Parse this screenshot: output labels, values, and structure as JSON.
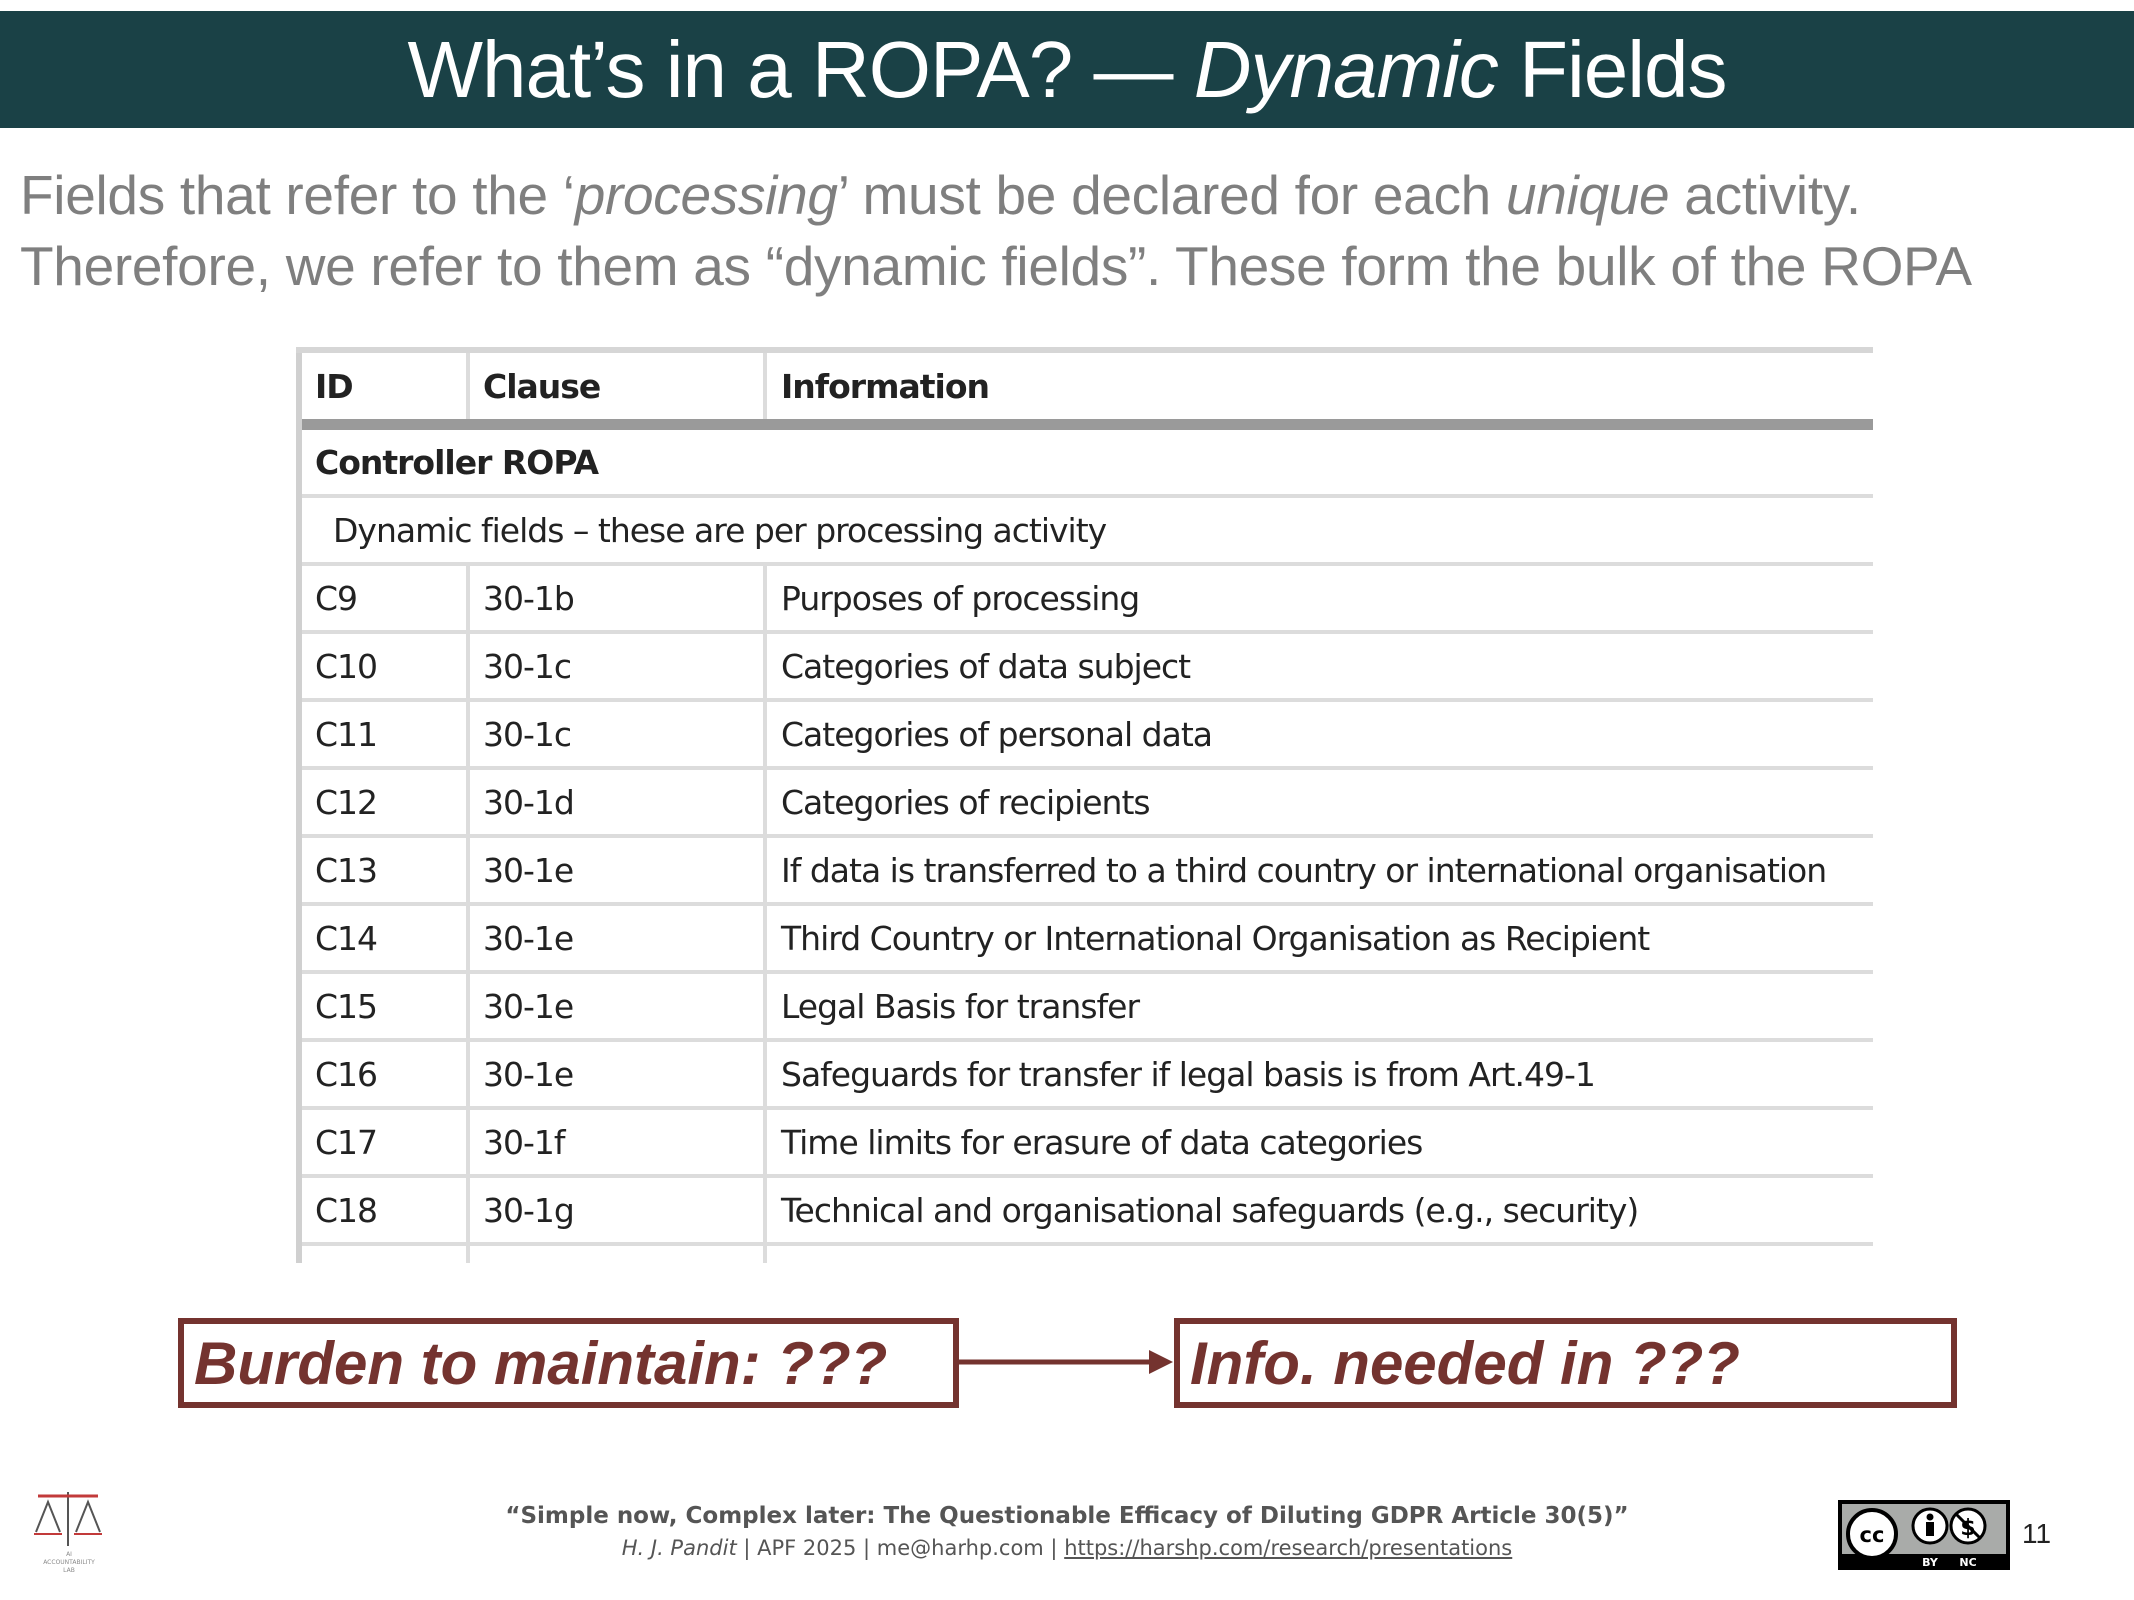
{
  "title": {
    "main": "What’s in a ROPA? — ",
    "italic": "Dynamic",
    "end": " Fields"
  },
  "intro": {
    "l1_a": "Fields that refer to the ‘",
    "l1_b": "processing",
    "l1_c": "’ must be declared for each ",
    "l1_d": "unique",
    "l1_e": " activity.",
    "l2": "Therefore, we refer to them as “dynamic fields”. These form the bulk of the ROPA"
  },
  "table": {
    "headers": {
      "id": "ID",
      "clause": "Clause",
      "info": "Information"
    },
    "section": "Controller ROPA",
    "subsection": "Dynamic fields – these are per processing activity",
    "rows": [
      {
        "id": "C9",
        "clause": "30-1b",
        "info": "Purposes of processing"
      },
      {
        "id": "C10",
        "clause": "30-1c",
        "info": "Categories of data subject"
      },
      {
        "id": "C11",
        "clause": "30-1c",
        "info": "Categories of personal data"
      },
      {
        "id": "C12",
        "clause": "30-1d",
        "info": "Categories of recipients"
      },
      {
        "id": "C13",
        "clause": "30-1e",
        "info": "If data is transferred to a third country or international organisation"
      },
      {
        "id": "C14",
        "clause": "30-1e",
        "info": "Third Country or International Organisation as Recipient"
      },
      {
        "id": "C15",
        "clause": "30-1e",
        "info": "Legal Basis for transfer"
      },
      {
        "id": "C16",
        "clause": "30-1e",
        "info": "Safeguards for transfer if legal basis is from Art.49-1"
      },
      {
        "id": "C17",
        "clause": "30-1f",
        "info": "Time limits for erasure of data categories"
      },
      {
        "id": "C18",
        "clause": "30-1g",
        "info": "Technical and organisational safeguards (e.g., security)"
      }
    ]
  },
  "callouts": {
    "left": "Burden to maintain: ???",
    "right": "Info. needed in ???"
  },
  "footer": {
    "citation": "“Simple now, Complex later: The Questionable Efficacy of Diluting GDPR Article 30(5)”",
    "author": "H. J. Pandit",
    "meta": " | APF 2025 | me@harhp.com | ",
    "link": "https://harshp.com/research/presentations",
    "logo_text_1": "AI",
    "logo_text_2": "ACCOUNTABILITY",
    "logo_text_3": "LAB",
    "license_by": "BY",
    "license_nc": "NC",
    "page_number": "11"
  },
  "colors": {
    "title_bg": "#1a4146",
    "accent": "#74332f",
    "intro_text": "#7f7f7f"
  },
  "icons": [
    "logo-icon",
    "creative-commons-icon",
    "arrow-right-icon"
  ]
}
